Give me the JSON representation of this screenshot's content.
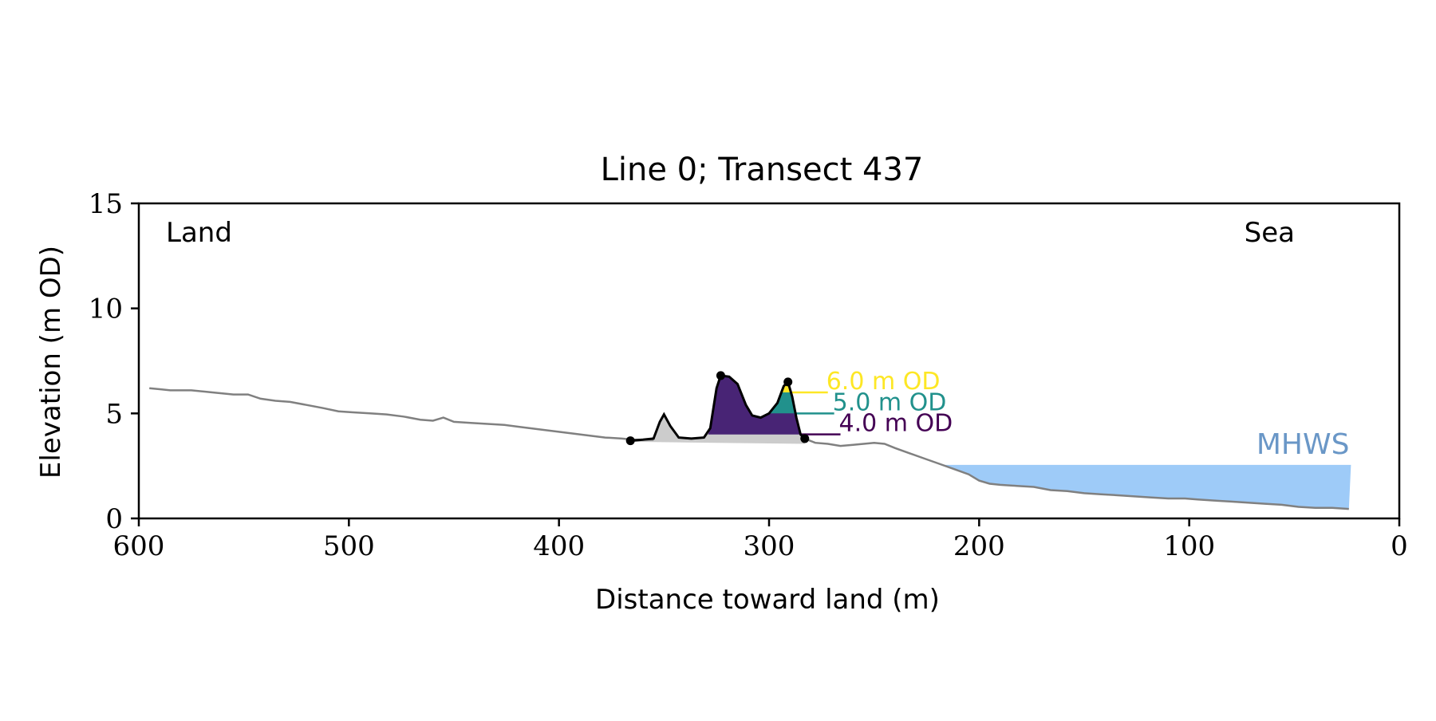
{
  "chart_data": {
    "type": "line",
    "title": "Line 0; Transect 437",
    "xlabel": "Distance toward land (m)",
    "ylabel": "Elevation (m OD)",
    "xlim": [
      600,
      0
    ],
    "ylim": [
      0,
      15
    ],
    "x_ticks": [
      600,
      500,
      400,
      300,
      200,
      100,
      0
    ],
    "y_ticks": [
      0,
      5,
      10,
      15
    ],
    "grid": false,
    "annotations": {
      "left_corner": "Land",
      "right_corner": "Sea"
    },
    "mhws": {
      "label": "MHWS",
      "level": 2.55,
      "x_start": 217,
      "x_end": 23,
      "color": "#9ecbf8",
      "label_color": "#6a97c7"
    },
    "profile": {
      "color": "#808080",
      "points": [
        [
          595,
          6.2
        ],
        [
          590,
          6.15
        ],
        [
          585,
          6.1
        ],
        [
          575,
          6.1
        ],
        [
          565,
          6.0
        ],
        [
          555,
          5.9
        ],
        [
          548,
          5.9
        ],
        [
          542,
          5.7
        ],
        [
          535,
          5.6
        ],
        [
          528,
          5.55
        ],
        [
          520,
          5.4
        ],
        [
          512,
          5.25
        ],
        [
          505,
          5.1
        ],
        [
          498,
          5.05
        ],
        [
          490,
          5.0
        ],
        [
          482,
          4.95
        ],
        [
          474,
          4.85
        ],
        [
          466,
          4.7
        ],
        [
          460,
          4.65
        ],
        [
          455,
          4.8
        ],
        [
          450,
          4.6
        ],
        [
          442,
          4.55
        ],
        [
          434,
          4.5
        ],
        [
          426,
          4.45
        ],
        [
          418,
          4.35
        ],
        [
          410,
          4.25
        ],
        [
          402,
          4.15
        ],
        [
          394,
          4.05
        ],
        [
          386,
          3.95
        ],
        [
          378,
          3.85
        ],
        [
          370,
          3.8
        ],
        [
          365,
          3.75
        ],
        [
          360,
          3.75
        ],
        [
          355,
          3.75
        ]
      ],
      "points_sea": [
        [
          283,
          3.8
        ],
        [
          278,
          3.6
        ],
        [
          272,
          3.55
        ],
        [
          266,
          3.45
        ],
        [
          260,
          3.5
        ],
        [
          255,
          3.55
        ],
        [
          250,
          3.6
        ],
        [
          245,
          3.55
        ],
        [
          240,
          3.35
        ],
        [
          233,
          3.1
        ],
        [
          226,
          2.85
        ],
        [
          219,
          2.6
        ],
        [
          212,
          2.35
        ],
        [
          205,
          2.1
        ],
        [
          200,
          1.8
        ],
        [
          195,
          1.65
        ],
        [
          190,
          1.6
        ],
        [
          182,
          1.55
        ],
        [
          174,
          1.5
        ],
        [
          166,
          1.35
        ],
        [
          158,
          1.3
        ],
        [
          150,
          1.2
        ],
        [
          142,
          1.15
        ],
        [
          134,
          1.1
        ],
        [
          126,
          1.05
        ],
        [
          118,
          1.0
        ],
        [
          110,
          0.95
        ],
        [
          102,
          0.95
        ],
        [
          96,
          0.9
        ],
        [
          88,
          0.85
        ],
        [
          80,
          0.8
        ],
        [
          72,
          0.75
        ],
        [
          64,
          0.7
        ],
        [
          56,
          0.65
        ],
        [
          48,
          0.55
        ],
        [
          40,
          0.5
        ],
        [
          32,
          0.5
        ],
        [
          24,
          0.45
        ]
      ]
    },
    "dune": {
      "line_color": "#000000",
      "base_fill": "#cccccc",
      "points": [
        [
          366,
          3.7
        ],
        [
          360,
          3.75
        ],
        [
          355,
          3.8
        ],
        [
          352,
          4.6
        ],
        [
          350,
          4.95
        ],
        [
          347,
          4.4
        ],
        [
          343,
          3.85
        ],
        [
          337,
          3.8
        ],
        [
          331,
          3.85
        ],
        [
          328,
          4.3
        ],
        [
          325,
          6.2
        ],
        [
          323,
          6.8
        ],
        [
          319,
          6.75
        ],
        [
          315,
          6.4
        ],
        [
          311,
          5.4
        ],
        [
          308,
          4.9
        ],
        [
          304,
          4.8
        ],
        [
          300,
          5.0
        ],
        [
          296,
          5.5
        ],
        [
          293,
          6.3
        ],
        [
          291,
          6.5
        ],
        [
          289,
          5.8
        ],
        [
          287,
          4.8
        ],
        [
          285,
          4.0
        ],
        [
          283,
          3.8
        ]
      ],
      "toe": [
        366,
        3.7
      ],
      "sea_end": [
        283,
        3.8
      ],
      "crests": [
        [
          323,
          6.8
        ],
        [
          291,
          6.5
        ]
      ]
    },
    "levels": [
      {
        "label": "6.0 m OD",
        "value": 6.0,
        "color": "#fde725",
        "fill_x": [
          294,
          289
        ],
        "line_x_end": 272
      },
      {
        "label": "5.0 m OD",
        "value": 5.0,
        "color": "#21918c",
        "fill_x": [
          302,
          288
        ],
        "line_x_end": 269
      },
      {
        "label": "4.0 m OD",
        "value": 4.0,
        "color": "#440154",
        "fill_x": [
          329,
          285
        ],
        "line_x_end": 266
      }
    ],
    "volume_fill": "#482475"
  }
}
